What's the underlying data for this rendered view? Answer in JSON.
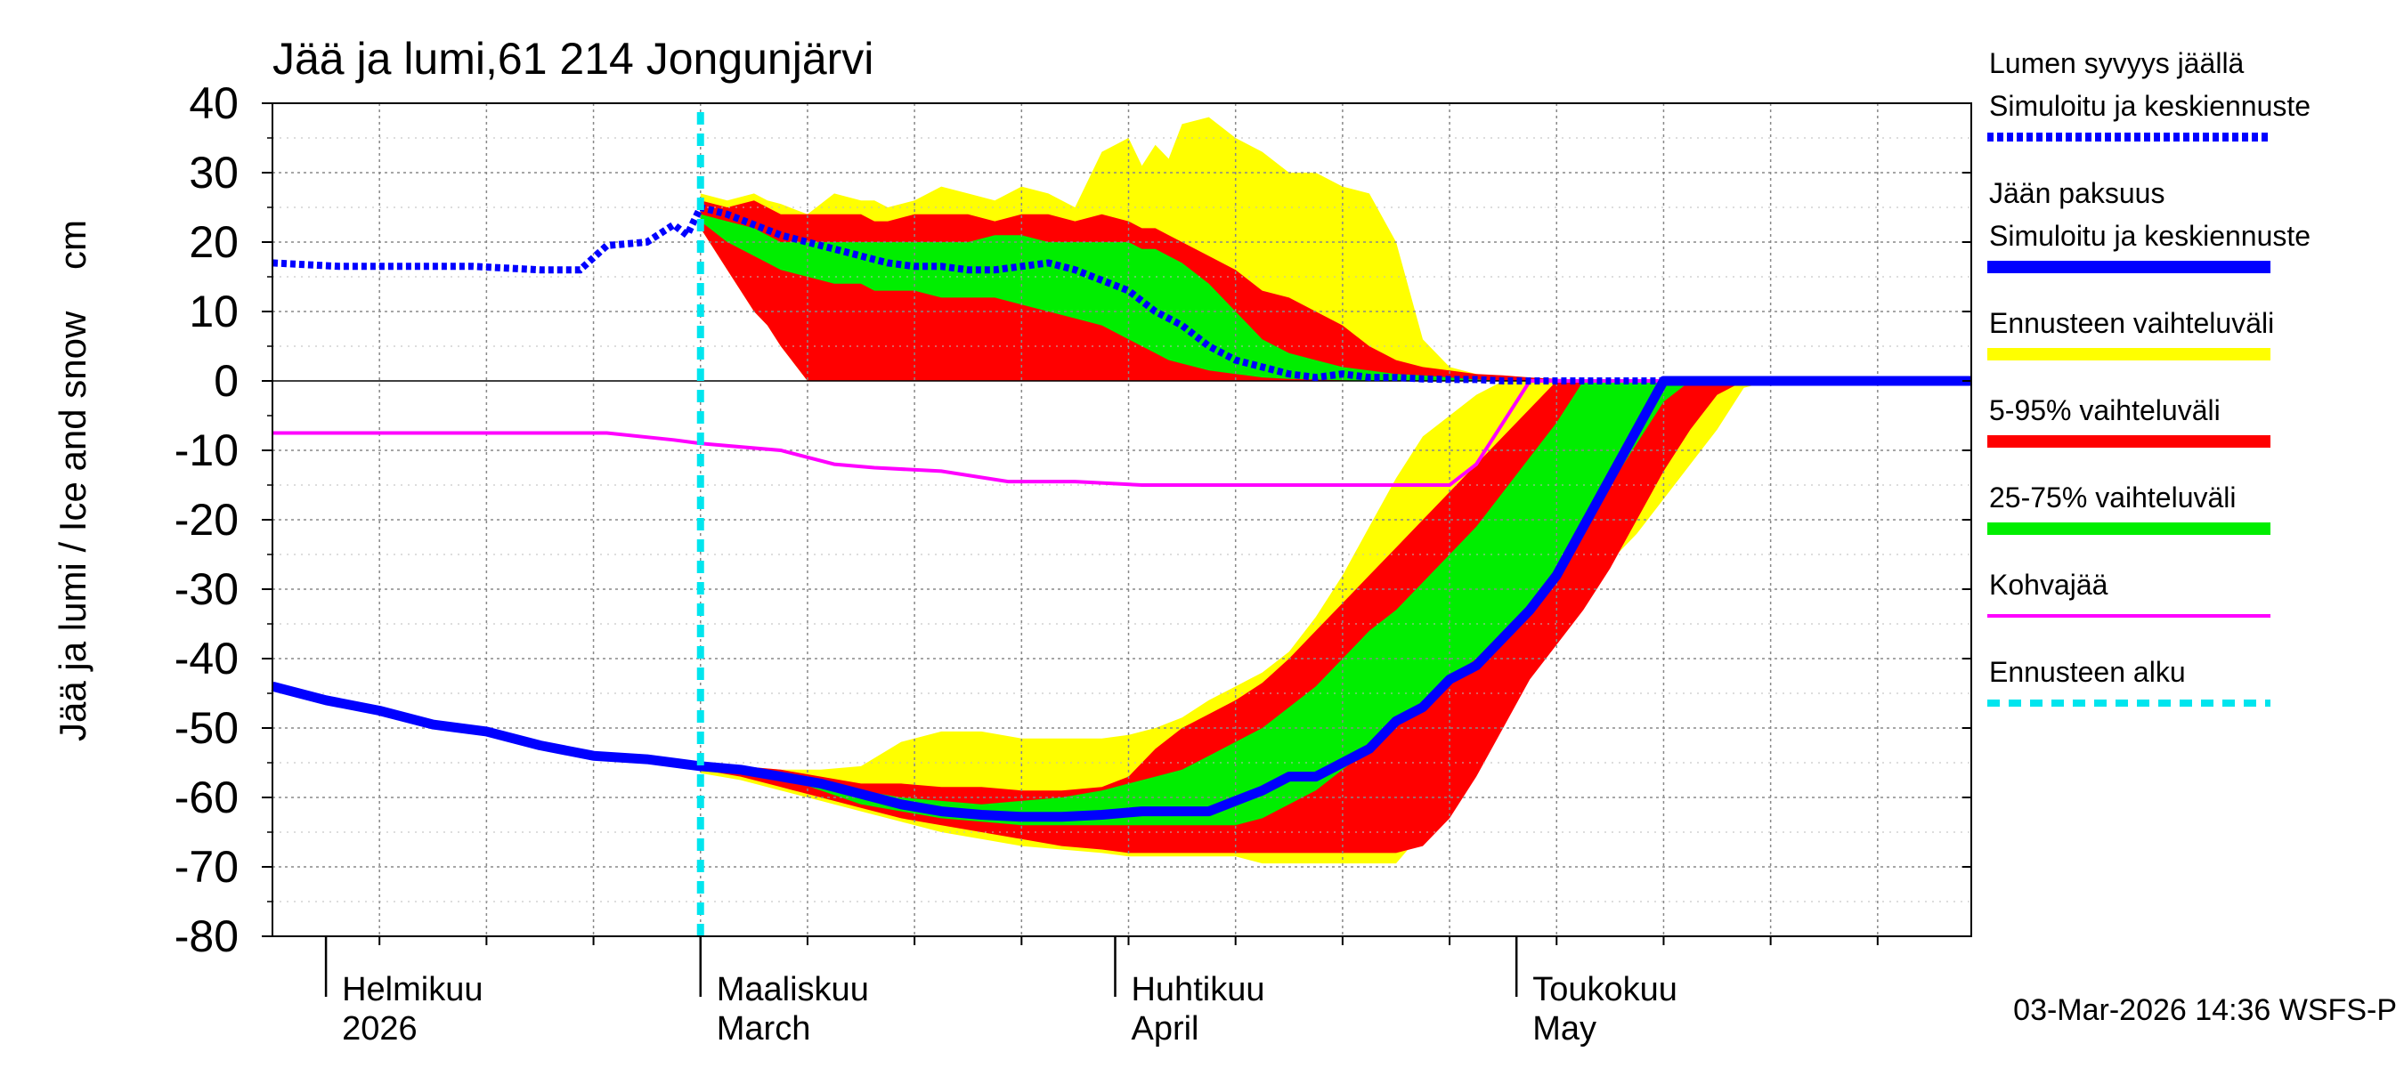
{
  "chart_data": {
    "type": "area",
    "title": "Jää ja lumi,61 214 Jongunjärvi",
    "ylabel": "Jää ja lumi / Ice and snow    cm",
    "ylim": [
      -80,
      40
    ],
    "yticks": [
      40,
      30,
      20,
      10,
      0,
      -10,
      -20,
      -30,
      -40,
      -50,
      -60,
      -70,
      -80
    ],
    "xlim": [
      0,
      127
    ],
    "x_unit": "days since 2026-01-28",
    "month_labels": [
      {
        "x": 4,
        "line1": "Helmikuu",
        "line2": "2026"
      },
      {
        "x": 32,
        "line1": "Maaliskuu",
        "line2": "March"
      },
      {
        "x": 63,
        "line1": "Huhtikuu",
        "line2": "April"
      },
      {
        "x": 93,
        "line1": "Toukokuu",
        "line2": "May"
      }
    ],
    "month_boundaries": [
      4,
      32,
      63,
      93
    ],
    "forecast_start": 32,
    "timestamp": "03-Mar-2026 14:36 WSFS-P",
    "legend": [
      {
        "label_lines": [
          "Lumen syvyys jäällä",
          "Simuloitu ja keskiennuste"
        ],
        "color": "#0000ff",
        "style": "dotted"
      },
      {
        "label_lines": [
          "Jään paksuus",
          "Simuloitu ja keskiennuste"
        ],
        "color": "#0000ff",
        "style": "solid"
      },
      {
        "label_lines": [
          "Ennusteen vaihteluväli"
        ],
        "color": "#ffff00",
        "style": "solid"
      },
      {
        "label_lines": [
          "5-95% vaihteluväli"
        ],
        "color": "#ff0000",
        "style": "solid"
      },
      {
        "label_lines": [
          "25-75% vaihteluväli"
        ],
        "color": "#00ee00",
        "style": "solid"
      },
      {
        "label_lines": [
          "Kohvajää"
        ],
        "color": "#ff00ff",
        "style": "solid"
      },
      {
        "label_lines": [
          "Ennusteen alku"
        ],
        "color": "#00e5ee",
        "style": "dashed"
      }
    ],
    "snow_simulated": {
      "x": [
        0,
        5,
        10,
        15,
        20,
        23,
        25,
        28,
        30,
        31,
        32
      ],
      "y": [
        17,
        16.5,
        16.5,
        16.5,
        16,
        16,
        19.5,
        20,
        22.5,
        21,
        25
      ]
    },
    "snow_forecast": {
      "x": [
        32,
        34,
        36,
        38,
        40,
        42,
        44,
        46,
        48,
        50,
        52,
        54,
        56,
        58,
        60,
        62,
        64,
        66,
        68,
        70,
        72,
        74,
        76,
        78,
        80,
        82,
        84,
        86,
        88,
        90,
        92,
        94,
        96,
        127
      ],
      "y": [
        25,
        24,
        22.5,
        21,
        20,
        19,
        18,
        17,
        16.5,
        16.5,
        16,
        16,
        16.5,
        17,
        16,
        14.5,
        13,
        10,
        8,
        5,
        3,
        2,
        1,
        0.5,
        1,
        0.5,
        0.5,
        0.3,
        0.2,
        0.2,
        0,
        0,
        0,
        0
      ]
    },
    "snow_bands": {
      "x": [
        32,
        34,
        36,
        37,
        38,
        40,
        42,
        44,
        45,
        46,
        48,
        50,
        52,
        54,
        56,
        58,
        60,
        62,
        64,
        65,
        66,
        67,
        68,
        70,
        72,
        74,
        76,
        78,
        80,
        82,
        84,
        86,
        88,
        90,
        92,
        94,
        96,
        98,
        100
      ],
      "yellow_top": [
        27,
        26,
        27,
        26,
        25.5,
        24,
        27,
        26,
        26,
        25,
        26,
        28,
        27,
        26,
        28,
        27,
        25,
        33,
        35,
        31,
        34,
        32,
        37,
        38,
        35,
        33,
        30,
        30,
        28,
        27,
        20,
        6,
        2,
        1,
        0.5,
        0,
        0,
        0,
        0
      ],
      "red_top": [
        26,
        25,
        26,
        25,
        24,
        24,
        24,
        24,
        23,
        23,
        24,
        24,
        24,
        23,
        24,
        24,
        23,
        24,
        23,
        22,
        22,
        21,
        20,
        18,
        16,
        13,
        12,
        10,
        8,
        5,
        3,
        2,
        1.5,
        1,
        0.8,
        0.5,
        0.3,
        0.2,
        0
      ],
      "green_top": [
        24,
        23,
        22,
        21,
        20,
        20,
        20,
        20,
        20,
        20,
        20,
        20,
        20,
        21,
        21,
        20,
        20,
        20,
        20,
        19,
        19,
        18,
        17,
        14,
        10,
        6,
        4,
        3,
        2,
        1.5,
        1,
        0.8,
        0.5,
        0.2,
        0,
        0,
        0,
        0,
        0
      ],
      "green_bottom": [
        23,
        20,
        18,
        17,
        16,
        15,
        14,
        14,
        13,
        13,
        13,
        12,
        12,
        12,
        11,
        10,
        9,
        8,
        6,
        5,
        4,
        3,
        2.5,
        1.5,
        1,
        0.5,
        0.3,
        0.2,
        0.1,
        0,
        0,
        0,
        0,
        0,
        0,
        0,
        0,
        0,
        0
      ],
      "red_bottom": [
        22,
        16,
        10,
        8,
        5,
        0,
        0,
        0,
        0,
        0,
        0,
        0,
        0,
        0,
        0,
        0,
        0,
        0,
        0,
        0,
        0,
        0,
        0,
        0,
        0,
        0,
        0,
        0,
        0,
        0,
        0,
        0,
        0,
        0,
        0,
        0,
        0,
        0,
        0
      ]
    },
    "ice_simulated": {
      "x": [
        0,
        4,
        8,
        12,
        16,
        20,
        24,
        28,
        32
      ],
      "y": [
        -44,
        -46,
        -47.5,
        -49.5,
        -50.5,
        -52.5,
        -54,
        -54.5,
        -55.5
      ]
    },
    "ice_forecast": {
      "x": [
        32,
        35,
        38,
        41,
        44,
        47,
        50,
        53,
        56,
        59,
        62,
        65,
        68,
        70,
        72,
        74,
        76,
        78,
        80,
        82,
        84,
        86,
        88,
        90,
        92,
        94,
        96,
        98,
        100,
        102,
        104,
        106,
        108,
        110,
        112,
        127
      ],
      "y": [
        -55.5,
        -56,
        -57,
        -58,
        -59.5,
        -61,
        -62,
        -62.5,
        -62.8,
        -62.8,
        -62.5,
        -62,
        -62,
        -62,
        -60.5,
        -59,
        -57,
        -57,
        -55,
        -53,
        -49,
        -47,
        -43,
        -41,
        -37,
        -33,
        -28,
        -21,
        -14,
        -7,
        0,
        0,
        0,
        0,
        0,
        0
      ]
    },
    "ice_bands": {
      "x": [
        32,
        35,
        38,
        41,
        44,
        47,
        50,
        53,
        56,
        59,
        62,
        64,
        66,
        68,
        70,
        72,
        74,
        76,
        78,
        80,
        82,
        84,
        86,
        88,
        90,
        92,
        94,
        96,
        98,
        100,
        102,
        104,
        106,
        108,
        110,
        112,
        114,
        116,
        118,
        120,
        122
      ],
      "yellow_top": [
        -55.5,
        -55.5,
        -56,
        -56,
        -55.5,
        -52,
        -50.5,
        -50.5,
        -51.5,
        -51.5,
        -51.5,
        -51,
        -50,
        -48.5,
        -46,
        -44,
        -42,
        -39,
        -34,
        -28,
        -21,
        -14,
        -8,
        -5,
        -2,
        0,
        0,
        0,
        0,
        0,
        0,
        0,
        0,
        0,
        0,
        0,
        0,
        0,
        0,
        0,
        0
      ],
      "red_top": [
        -55.5,
        -55.5,
        -56,
        -57,
        -58,
        -58,
        -58.5,
        -58.5,
        -59,
        -59,
        -58.5,
        -57,
        -53,
        -50,
        -48,
        -46,
        -43.5,
        -40,
        -36,
        -32,
        -28,
        -24,
        -20,
        -16,
        -12,
        -8,
        -4,
        0,
        0,
        0,
        0,
        0,
        0,
        0,
        0,
        0,
        0,
        0,
        0,
        0,
        0
      ],
      "green_top": [
        -55.5,
        -56,
        -57,
        -58,
        -59,
        -60,
        -60.5,
        -61,
        -60.5,
        -60,
        -59,
        -58,
        -57,
        -56,
        -54,
        -52,
        -50,
        -47,
        -44,
        -40,
        -36,
        -33,
        -29,
        -25,
        -21,
        -16,
        -11,
        -6,
        0,
        0,
        0,
        0,
        0,
        0,
        0,
        0,
        0,
        0,
        0,
        0,
        0
      ],
      "green_bottom": [
        -55.5,
        -56,
        -57,
        -59,
        -61,
        -62,
        -63,
        -63.5,
        -64,
        -64,
        -64,
        -64,
        -64,
        -64,
        -64,
        -64,
        -63,
        -61,
        -59,
        -56,
        -53,
        -50,
        -46,
        -43,
        -40,
        -36,
        -32,
        -27,
        -21,
        -15,
        -9,
        -3,
        0,
        0,
        0,
        0,
        0,
        0,
        0,
        0,
        0
      ],
      "red_bottom": [
        -56,
        -57,
        -58.5,
        -60,
        -61.5,
        -63,
        -64,
        -65,
        -66,
        -67,
        -67.5,
        -68,
        -68,
        -68,
        -68,
        -68,
        -68,
        -68,
        -68,
        -68,
        -68,
        -68,
        -67,
        -63,
        -57,
        -50,
        -43,
        -38,
        -33,
        -27,
        -20,
        -13,
        -7,
        -2,
        0,
        0,
        0,
        0,
        0,
        0,
        0
      ],
      "yellow_bottom": [
        -56.5,
        -57.5,
        -59,
        -60.5,
        -62,
        -63.5,
        -65,
        -66,
        -67,
        -67.5,
        -68,
        -68.5,
        -68.5,
        -68.5,
        -68.5,
        -68.5,
        -69.5,
        -69.5,
        -69.5,
        -69.5,
        -69.5,
        -69.5,
        -65,
        -60,
        -54,
        -48,
        -42,
        -36,
        -30,
        -26,
        -22,
        -17,
        -12,
        -7,
        -1,
        0,
        0,
        0,
        0,
        0,
        0
      ]
    },
    "kohvajaa": {
      "x": [
        0,
        5,
        10,
        15,
        20,
        25,
        30,
        32,
        35,
        38,
        40,
        42,
        45,
        50,
        55,
        60,
        65,
        70,
        75,
        80,
        85,
        88,
        90,
        92,
        94,
        100,
        110,
        127
      ],
      "y": [
        -7.5,
        -7.5,
        -7.5,
        -7.5,
        -7.5,
        -7.5,
        -8.5,
        -9,
        -9.5,
        -10,
        -11,
        -12,
        -12.5,
        -13,
        -14.5,
        -14.5,
        -15,
        -15,
        -15,
        -15,
        -15,
        -15,
        -12,
        -6,
        0,
        0,
        0,
        0
      ]
    }
  }
}
